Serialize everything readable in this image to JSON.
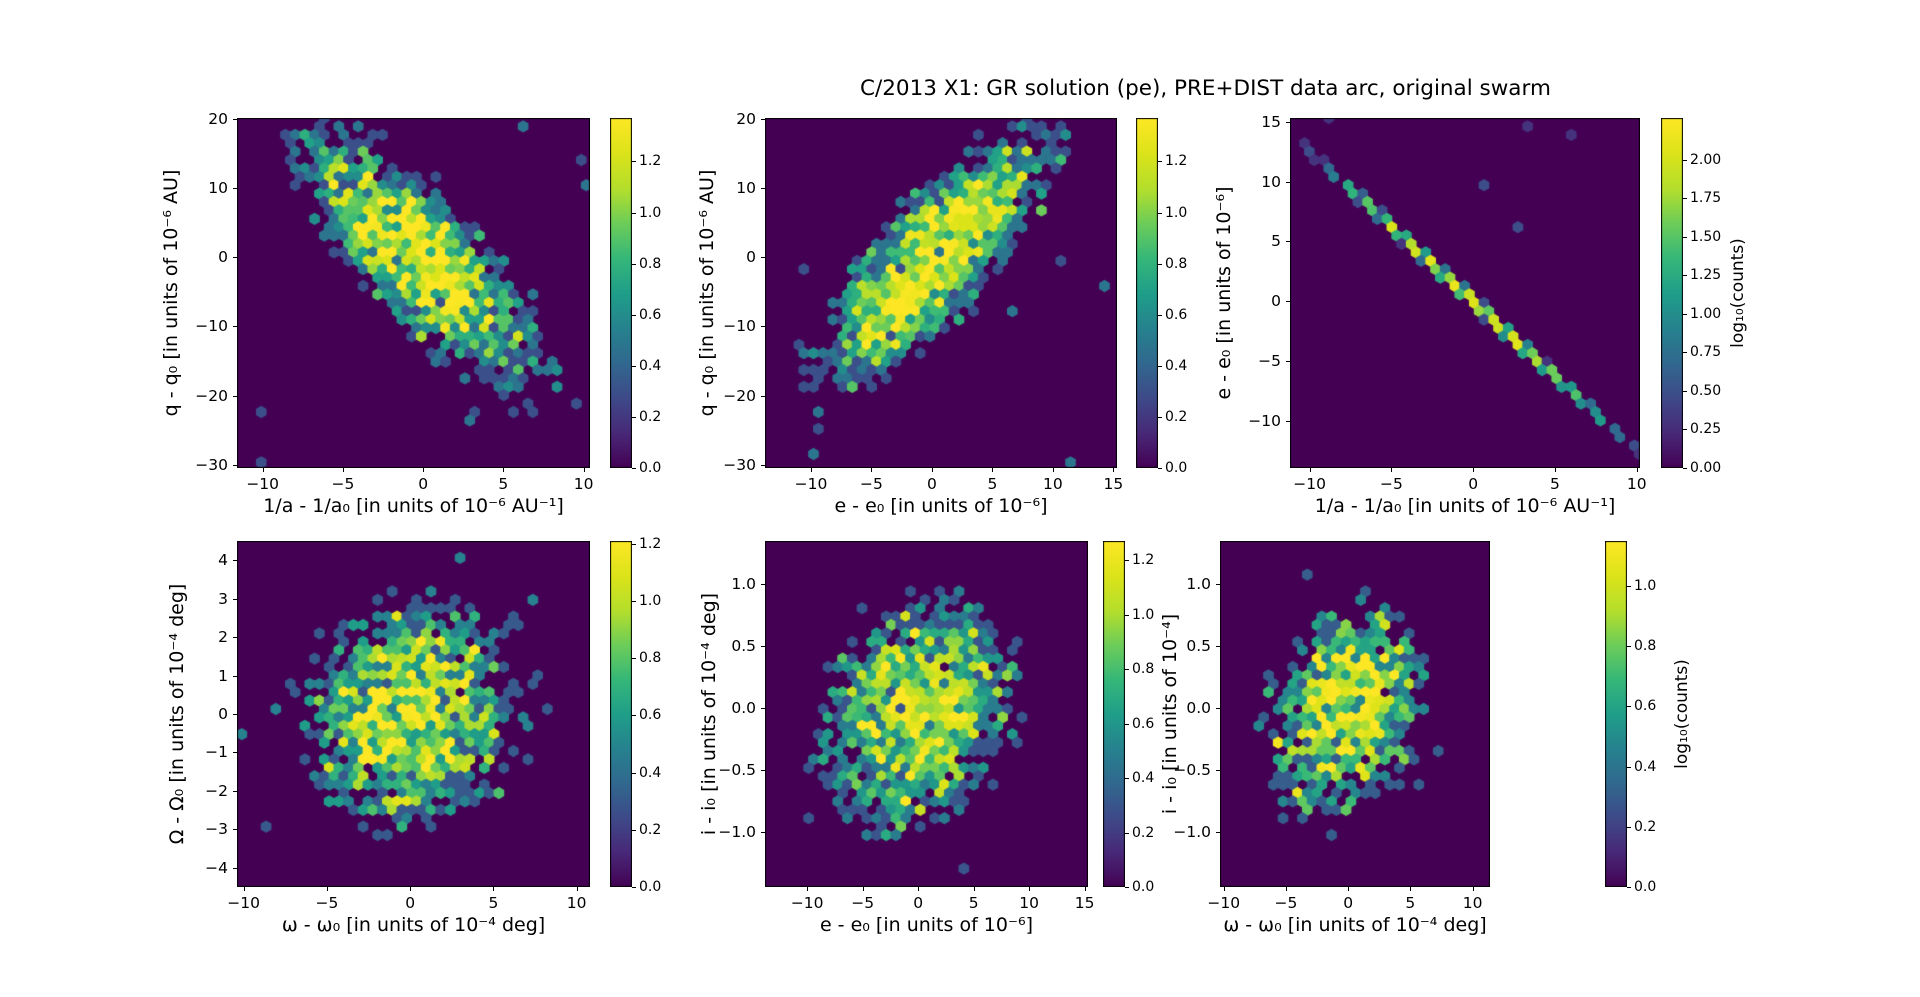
{
  "title": "C/2013 X1: GR solution (pe), PRE+DIST data arc, original swarm",
  "colors": {
    "figure_background": "#ffffff",
    "hexbin_background": "#440154",
    "text": "#000000",
    "viridis": [
      "#440154",
      "#482878",
      "#3e4a89",
      "#31688e",
      "#26828e",
      "#1f9e89",
      "#35b779",
      "#6dcd59",
      "#b4de2c",
      "#dce319",
      "#fde725"
    ]
  },
  "chart_data": [
    {
      "type": "hexbin",
      "id": "q-vs-inv-a",
      "xlabel": "1/a - 1/a₀ [in units of 10⁻⁶ AU⁻¹]",
      "ylabel": "q - q₀ [in units of 10⁻⁶ AU]",
      "xlim": [
        -11.6,
        10.4
      ],
      "ylim": [
        -30.5,
        20.2
      ],
      "xticks": {
        "values": [
          -10,
          -5,
          0,
          5,
          10
        ],
        "labels": [
          "−10",
          "−5",
          "0",
          "5",
          "10"
        ]
      },
      "yticks": {
        "values": [
          20,
          10,
          0,
          -10,
          -20,
          -30
        ],
        "labels": [
          "20",
          "10",
          "0",
          "−10",
          "−20",
          "−30"
        ]
      },
      "colorbar": {
        "vmax": 1.37,
        "tick_values": [
          0.0,
          0.2,
          0.4,
          0.6,
          0.8,
          1.0,
          1.2
        ],
        "tick_labels": [
          "0.0",
          "0.2",
          "0.4",
          "0.6",
          "0.8",
          "1.0",
          "1.2"
        ],
        "label": null
      },
      "grid": false,
      "distribution": {
        "kind": "bivariate-gaussian",
        "center": [
          0,
          -0.5
        ],
        "sigma": [
          3.4,
          8.2
        ],
        "correlation": -0.8,
        "peak_log10_counts": 1.32,
        "noise": 0.75,
        "outlier_rate": 0.005,
        "seed": 1
      }
    },
    {
      "type": "hexbin",
      "id": "q-vs-e",
      "xlabel": "e - e₀ [in units of 10⁻⁶]",
      "ylabel": "q - q₀ [in units of 10⁻⁶ AU]",
      "xlim": [
        -13.8,
        15.3
      ],
      "ylim": [
        -30.5,
        20.2
      ],
      "xticks": {
        "values": [
          -10,
          -5,
          0,
          5,
          10,
          15
        ],
        "labels": [
          "−10",
          "−5",
          "0",
          "5",
          "10",
          "15"
        ]
      },
      "yticks": {
        "values": [
          20,
          10,
          0,
          -10,
          -20,
          -30
        ],
        "labels": [
          "20",
          "10",
          "0",
          "−10",
          "−20",
          "−30"
        ]
      },
      "colorbar": {
        "vmax": 1.37,
        "tick_values": [
          0.0,
          0.2,
          0.4,
          0.6,
          0.8,
          1.0,
          1.2
        ],
        "tick_labels": [
          "0.0",
          "0.2",
          "0.4",
          "0.6",
          "0.8",
          "1.0",
          "1.2"
        ],
        "label": null
      },
      "grid": false,
      "distribution": {
        "kind": "bivariate-gaussian",
        "center": [
          0,
          -0.5
        ],
        "sigma": [
          4.3,
          8.2
        ],
        "correlation": 0.8,
        "peak_log10_counts": 1.32,
        "noise": 0.75,
        "outlier_rate": 0.005,
        "seed": 2
      }
    },
    {
      "type": "hexbin",
      "id": "e-vs-inv-a",
      "xlabel": "1/a - 1/a₀ [in units of 10⁻⁶ AU⁻¹]",
      "ylabel": "e - e₀ [in units of 10⁻⁶]",
      "xlim": [
        -11.2,
        10.2
      ],
      "ylim": [
        -13.9,
        15.3
      ],
      "xticks": {
        "values": [
          -10,
          -5,
          0,
          5,
          10
        ],
        "labels": [
          "−10",
          "−5",
          "0",
          "5",
          "10"
        ]
      },
      "yticks": {
        "values": [
          15,
          10,
          5,
          0,
          -5,
          -10
        ],
        "labels": [
          "15",
          "10",
          "5",
          "0",
          "−5",
          "−10"
        ]
      },
      "colorbar": {
        "vmax": 2.27,
        "tick_values": [
          0.0,
          0.25,
          0.5,
          0.75,
          1.0,
          1.25,
          1.5,
          1.75,
          2.0
        ],
        "tick_labels": [
          "0.00",
          "0.25",
          "0.50",
          "0.75",
          "1.00",
          "1.25",
          "1.50",
          "1.75",
          "2.00"
        ],
        "label": "log₁₀(counts)"
      },
      "grid": false,
      "distribution": {
        "kind": "linear-anticorrelation",
        "slope": -1.25,
        "intercept": 0,
        "perp_sigma": 0.25,
        "along_sigma": 3.7,
        "peak_log10_counts": 2.12,
        "noise": 0.35,
        "outlier_rate": 0.0015,
        "seed": 3
      }
    },
    {
      "type": "hexbin",
      "id": "Omega-vs-omega",
      "xlabel": "ω - ω₀ [in units of 10⁻⁴ deg]",
      "ylabel": "Ω - Ω₀ [in units of 10⁻⁴ deg]",
      "xlim": [
        -10.4,
        10.8
      ],
      "ylim": [
        -4.5,
        4.5
      ],
      "xticks": {
        "values": [
          -10,
          -5,
          0,
          5,
          10
        ],
        "labels": [
          "−10",
          "−5",
          "0",
          "5",
          "10"
        ]
      },
      "yticks": {
        "values": [
          4,
          3,
          2,
          1,
          0,
          -1,
          -2,
          -3,
          -4
        ],
        "labels": [
          "4",
          "3",
          "2",
          "1",
          "0",
          "−1",
          "−2",
          "−3",
          "−4"
        ]
      },
      "colorbar": {
        "vmax": 1.21,
        "tick_values": [
          0.0,
          0.2,
          0.4,
          0.6,
          0.8,
          1.0,
          1.2
        ],
        "tick_labels": [
          "0.0",
          "0.2",
          "0.4",
          "0.6",
          "0.8",
          "1.0",
          "1.2"
        ],
        "label": null
      },
      "grid": false,
      "distribution": {
        "kind": "bivariate-gaussian",
        "center": [
          0,
          0
        ],
        "sigma": [
          2.9,
          1.35
        ],
        "correlation": 0.1,
        "peak_log10_counts": 1.12,
        "noise": 0.75,
        "outlier_rate": 0.005,
        "seed": 4
      }
    },
    {
      "type": "hexbin",
      "id": "i-vs-e",
      "xlabel": "e - e₀ [in units of 10⁻⁶]",
      "ylabel": "i - i₀ [in units of 10⁻⁴ deg]",
      "xlim": [
        -13.8,
        15.3
      ],
      "ylim": [
        -1.44,
        1.35
      ],
      "xticks": {
        "values": [
          -10,
          -5,
          0,
          5,
          10,
          15
        ],
        "labels": [
          "−10",
          "−5",
          "0",
          "5",
          "10",
          "15"
        ]
      },
      "yticks": {
        "values": [
          1.0,
          0.5,
          0.0,
          -0.5,
          -1.0
        ],
        "labels": [
          "1.0",
          "0.5",
          "0.0",
          "−0.5",
          "−1.0"
        ]
      },
      "colorbar": {
        "vmax": 1.27,
        "tick_values": [
          0.0,
          0.2,
          0.4,
          0.6,
          0.8,
          1.0,
          1.2
        ],
        "tick_labels": [
          "0.0",
          "0.2",
          "0.4",
          "0.6",
          "0.8",
          "1.0",
          "1.2"
        ],
        "label": null
      },
      "grid": false,
      "distribution": {
        "kind": "bivariate-gaussian",
        "center": [
          0,
          -0.05
        ],
        "sigma": [
          3.9,
          0.42
        ],
        "correlation": 0.25,
        "peak_log10_counts": 1.15,
        "noise": 0.75,
        "outlier_rate": 0.005,
        "seed": 5
      }
    },
    {
      "type": "hexbin",
      "id": "i-vs-omega",
      "xlabel": "ω - ω₀ [in units of 10⁻⁴ deg]",
      "ylabel": "i - i₀ [in units of 10⁻⁴]",
      "xlim": [
        -10.3,
        11.4
      ],
      "ylim": [
        -1.44,
        1.35
      ],
      "xticks": {
        "values": [
          -10,
          -5,
          0,
          5,
          10
        ],
        "labels": [
          "−10",
          "−5",
          "0",
          "5",
          "10"
        ]
      },
      "yticks": {
        "values": [
          1.0,
          0.5,
          0.0,
          -0.5,
          -1.0
        ],
        "labels": [
          "1.0",
          "0.5",
          "0.0",
          "−0.5",
          "−1.0"
        ]
      },
      "colorbar": {
        "vmax": 1.15,
        "tick_values": [
          0.0,
          0.2,
          0.4,
          0.6,
          0.8,
          1.0
        ],
        "tick_labels": [
          "0.0",
          "0.2",
          "0.4",
          "0.6",
          "0.8",
          "1.0"
        ],
        "label": "log₁₀(counts)"
      },
      "grid": false,
      "distribution": {
        "kind": "bivariate-gaussian",
        "center": [
          0,
          0
        ],
        "sigma": [
          2.9,
          0.42
        ],
        "correlation": 0.3,
        "peak_log10_counts": 1.05,
        "noise": 0.75,
        "outlier_rate": 0.005,
        "seed": 6
      }
    }
  ]
}
